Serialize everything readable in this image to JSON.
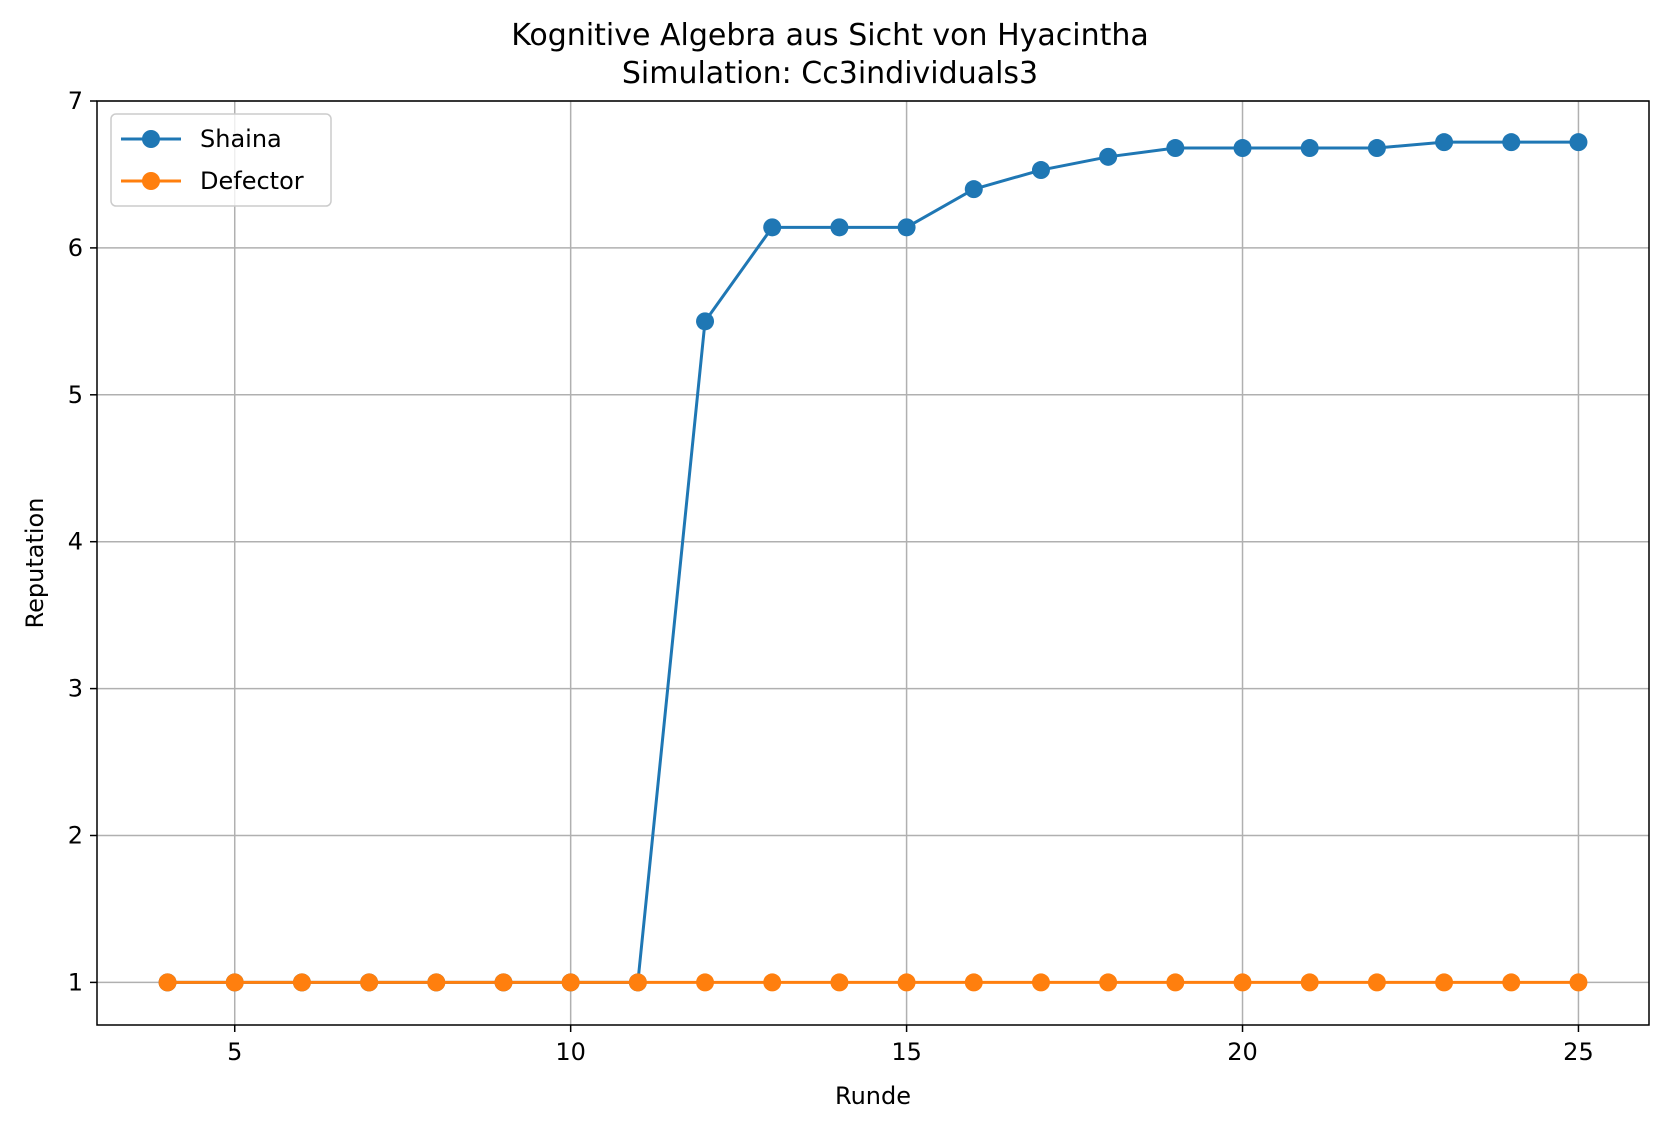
{
  "chart_data": {
    "type": "line",
    "title": "Kognitive Algebra aus Sicht von Hyacintha",
    "subtitle": "Simulation: Cc3individuals3",
    "xlabel": "Runde",
    "ylabel": "Reputation",
    "xlim": [
      2.95,
      26.05
    ],
    "ylim": [
      0.71,
      7.0
    ],
    "xticks": [
      5,
      10,
      15,
      20,
      25
    ],
    "yticks": [
      1,
      2,
      3,
      4,
      5,
      6,
      7
    ],
    "grid": true,
    "legend_position": "upper-left",
    "x": [
      4,
      5,
      6,
      7,
      8,
      9,
      10,
      11,
      12,
      13,
      14,
      15,
      16,
      17,
      18,
      19,
      20,
      21,
      22,
      23,
      24,
      25
    ],
    "series": [
      {
        "name": "Shaina",
        "color": "#1f77b4",
        "marker": "circle",
        "values": [
          1,
          1,
          1,
          1,
          1,
          1,
          1,
          1,
          5.5,
          6.14,
          6.14,
          6.14,
          6.4,
          6.53,
          6.62,
          6.68,
          6.68,
          6.68,
          6.68,
          6.72,
          6.72,
          6.72
        ]
      },
      {
        "name": "Defector",
        "color": "#ff7f0e",
        "marker": "circle",
        "values": [
          1,
          1,
          1,
          1,
          1,
          1,
          1,
          1,
          1,
          1,
          1,
          1,
          1,
          1,
          1,
          1,
          1,
          1,
          1,
          1,
          1,
          1
        ]
      }
    ]
  }
}
